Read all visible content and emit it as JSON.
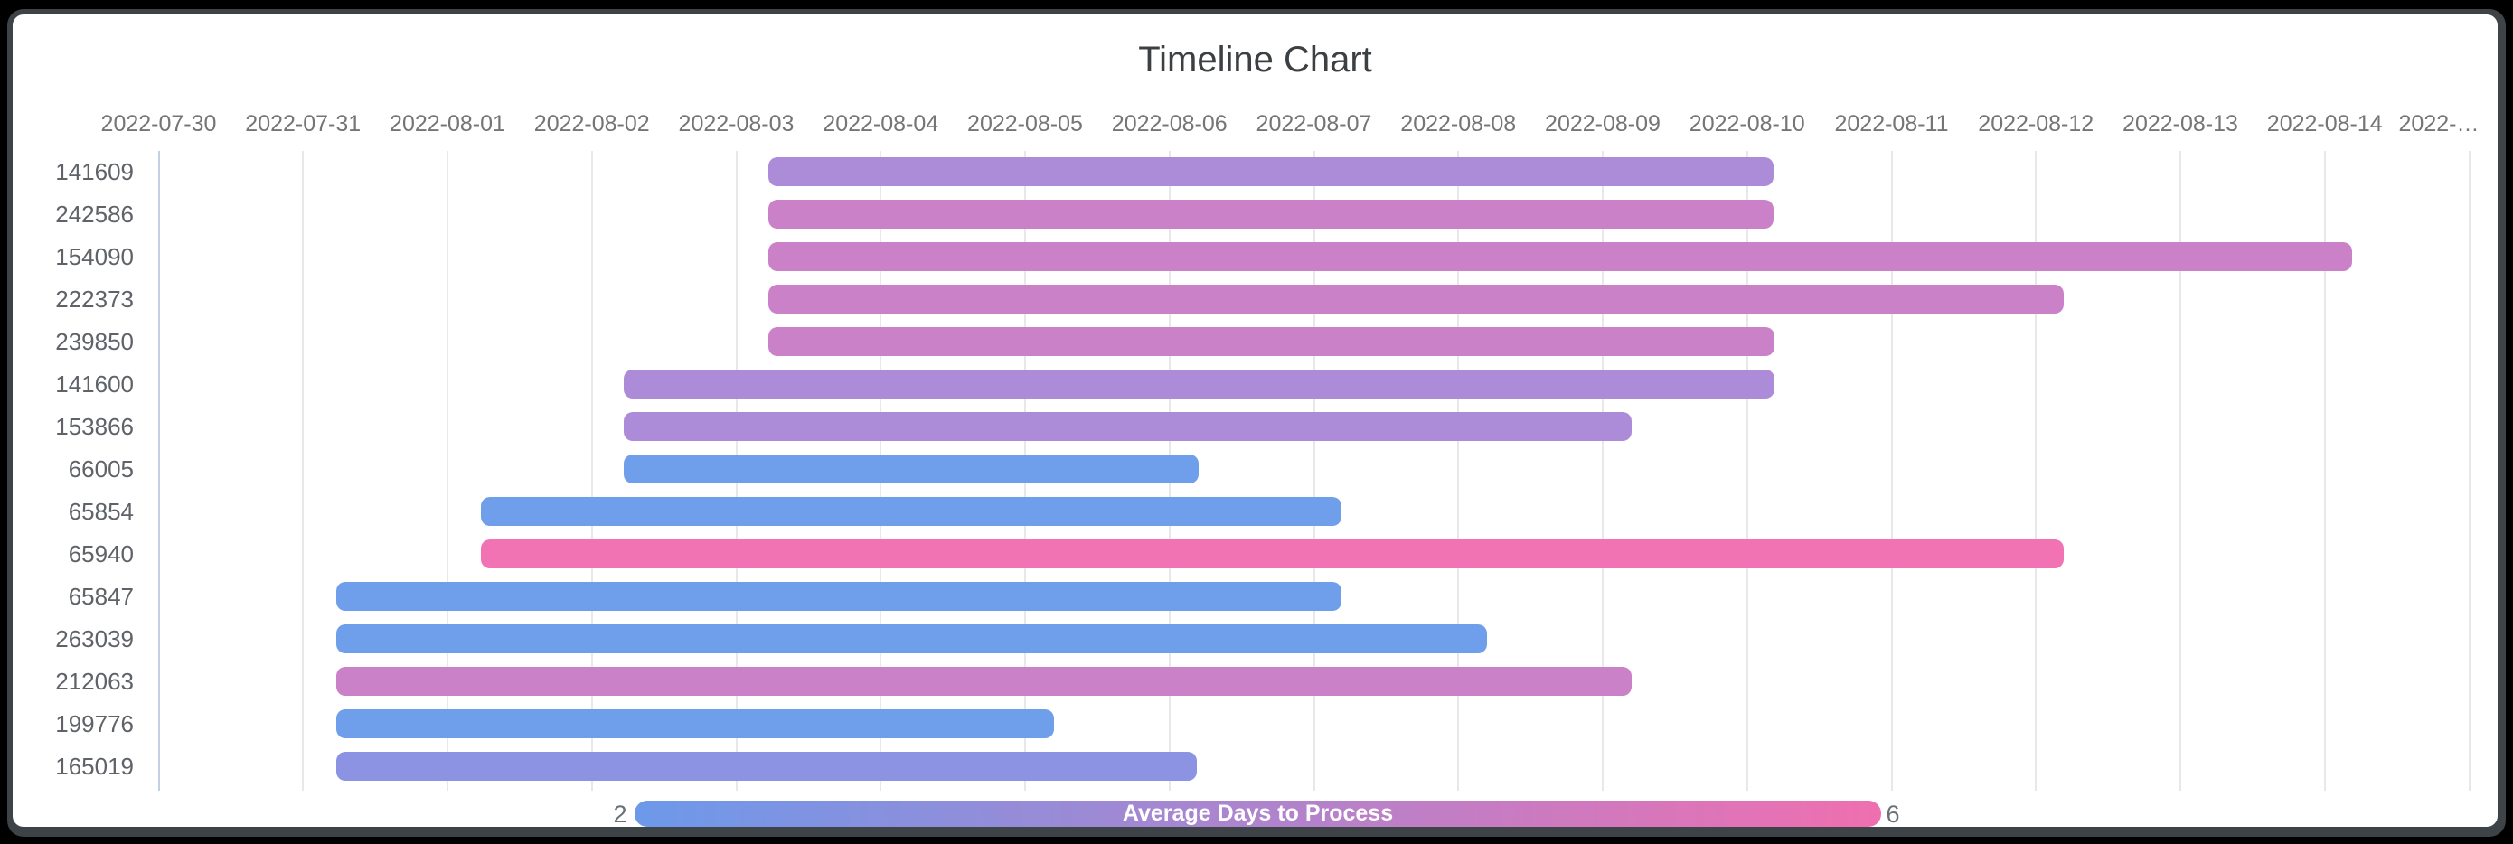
{
  "window": {
    "background_color": "#000000",
    "frame_color": "#3e4347",
    "card_color": "#ffffff"
  },
  "chart_data": {
    "type": "timeline",
    "title": "Timeline Chart",
    "x_axis": {
      "start_date": "2022-07-30",
      "days_visible": 16,
      "tick_labels": [
        "2022-07-30",
        "2022-07-31",
        "2022-08-01",
        "2022-08-02",
        "2022-08-03",
        "2022-08-04",
        "2022-08-05",
        "2022-08-06",
        "2022-08-07",
        "2022-08-08",
        "2022-08-09",
        "2022-08-10",
        "2022-08-11",
        "2022-08-12",
        "2022-08-13",
        "2022-08-14",
        "2022-…"
      ]
    },
    "tasks": [
      {
        "label": "141609",
        "start_date": "2022-08-03",
        "end_date": "2022-08-10",
        "start_offset_days": 4.22,
        "end_offset_days": 11.18,
        "duration_days": 7,
        "avg_days_to_process": 4,
        "color": "#ac8cd8"
      },
      {
        "label": "242586",
        "start_date": "2022-08-03",
        "end_date": "2022-08-10",
        "start_offset_days": 4.22,
        "end_offset_days": 11.18,
        "duration_days": 7,
        "avg_days_to_process": 5,
        "color": "#cb81c8"
      },
      {
        "label": "154090",
        "start_date": "2022-08-03",
        "end_date": "2022-08-14",
        "start_offset_days": 4.22,
        "end_offset_days": 15.19,
        "duration_days": 11,
        "avg_days_to_process": 5,
        "color": "#cb81c8"
      },
      {
        "label": "222373",
        "start_date": "2022-08-03",
        "end_date": "2022-08-12",
        "start_offset_days": 4.22,
        "end_offset_days": 13.19,
        "duration_days": 9,
        "avg_days_to_process": 5,
        "color": "#cb81c8"
      },
      {
        "label": "239850",
        "start_date": "2022-08-03",
        "end_date": "2022-08-10",
        "start_offset_days": 4.22,
        "end_offset_days": 11.19,
        "duration_days": 7,
        "avg_days_to_process": 5,
        "color": "#cb81c8"
      },
      {
        "label": "141600",
        "start_date": "2022-08-02",
        "end_date": "2022-08-10",
        "start_offset_days": 3.22,
        "end_offset_days": 11.19,
        "duration_days": 8,
        "avg_days_to_process": 4,
        "color": "#ac8cd8"
      },
      {
        "label": "153866",
        "start_date": "2022-08-02",
        "end_date": "2022-08-09",
        "start_offset_days": 3.22,
        "end_offset_days": 10.2,
        "duration_days": 7,
        "avg_days_to_process": 4,
        "color": "#ac8cd8"
      },
      {
        "label": "66005",
        "start_date": "2022-08-02",
        "end_date": "2022-08-06",
        "start_offset_days": 3.22,
        "end_offset_days": 7.2,
        "duration_days": 4,
        "avg_days_to_process": 2,
        "color": "#6f9fea"
      },
      {
        "label": "65854",
        "start_date": "2022-08-01",
        "end_date": "2022-08-07",
        "start_offset_days": 2.23,
        "end_offset_days": 8.19,
        "duration_days": 6,
        "avg_days_to_process": 2,
        "color": "#6f9fea"
      },
      {
        "label": "65940",
        "start_date": "2022-08-01",
        "end_date": "2022-08-12",
        "start_offset_days": 2.23,
        "end_offset_days": 13.19,
        "duration_days": 11,
        "avg_days_to_process": 6,
        "color": "#f173b3"
      },
      {
        "label": "65847",
        "start_date": "2022-07-31",
        "end_date": "2022-08-07",
        "start_offset_days": 1.23,
        "end_offset_days": 8.19,
        "duration_days": 7,
        "avg_days_to_process": 2,
        "color": "#6f9fea"
      },
      {
        "label": "263039",
        "start_date": "2022-07-31",
        "end_date": "2022-08-08",
        "start_offset_days": 1.23,
        "end_offset_days": 9.2,
        "duration_days": 8,
        "avg_days_to_process": 2,
        "color": "#6f9fea"
      },
      {
        "label": "212063",
        "start_date": "2022-07-31",
        "end_date": "2022-08-09",
        "start_offset_days": 1.23,
        "end_offset_days": 10.2,
        "duration_days": 9,
        "avg_days_to_process": 5,
        "color": "#cb81c8"
      },
      {
        "label": "199776",
        "start_date": "2022-07-31",
        "end_date": "2022-08-05",
        "start_offset_days": 1.23,
        "end_offset_days": 6.2,
        "duration_days": 5,
        "avg_days_to_process": 2,
        "color": "#6f9fea"
      },
      {
        "label": "165019",
        "start_date": "2022-07-31",
        "end_date": "2022-08-06",
        "start_offset_days": 1.23,
        "end_offset_days": 7.19,
        "duration_days": 6,
        "avg_days_to_process": 3,
        "color": "#8c93e2"
      }
    ],
    "legend": {
      "title": "Average Days to Process",
      "min_label": "2",
      "max_label": "6",
      "min_color": "#6d99ea",
      "max_color": "#ef6fb0"
    },
    "color_scale": {
      "2": "#6f9fea",
      "3": "#8c93e2",
      "4": "#ac8cd8",
      "5": "#cb81c8",
      "6": "#f173b3"
    }
  }
}
